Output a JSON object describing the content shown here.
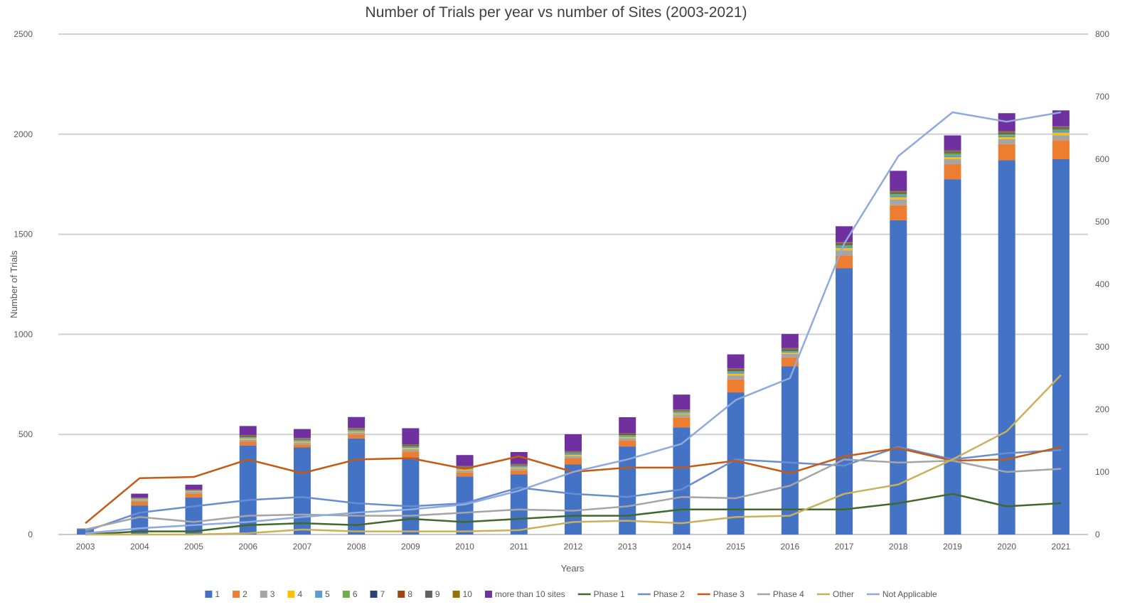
{
  "chart_data": {
    "type": "bar",
    "title": "Number of Trials per year vs number of Sites (2003-2021)",
    "xlabel": "Years",
    "ylabel": "Number of Trials",
    "ylim": [
      0,
      2500
    ],
    "y2lim": [
      0,
      800
    ],
    "yticks": [
      "0",
      "500",
      "1000",
      "1500",
      "2000",
      "2500"
    ],
    "y2ticks": [
      "0",
      "100",
      "200",
      "300",
      "400",
      "500",
      "600",
      "700",
      "800"
    ],
    "grid": true,
    "legend": "bottom",
    "categories": [
      "2003",
      "2004",
      "2005",
      "2006",
      "2007",
      "2008",
      "2009",
      "2010",
      "2011",
      "2012",
      "2013",
      "2014",
      "2015",
      "2016",
      "2017",
      "2018",
      "2019",
      "2020",
      "2021"
    ],
    "bar_series": [
      {
        "name": "1",
        "color": "#4472C4",
        "values": [
          28,
          145,
          185,
          445,
          435,
          480,
          385,
          290,
          300,
          350,
          440,
          535,
          710,
          840,
          1330,
          1570,
          1775,
          1870,
          1875
        ]
      },
      {
        "name": "2",
        "color": "#ED7D31",
        "values": [
          2,
          20,
          20,
          20,
          15,
          20,
          30,
          20,
          20,
          30,
          30,
          50,
          65,
          45,
          65,
          75,
          75,
          80,
          95
        ]
      },
      {
        "name": "3",
        "color": "#A5A5A5",
        "values": [
          1,
          8,
          8,
          10,
          10,
          10,
          12,
          10,
          10,
          12,
          12,
          15,
          20,
          18,
          25,
          30,
          25,
          25,
          25
        ]
      },
      {
        "name": "4",
        "color": "#FFC000",
        "values": [
          0,
          3,
          3,
          5,
          5,
          5,
          5,
          5,
          5,
          5,
          5,
          5,
          8,
          5,
          10,
          10,
          10,
          10,
          12
        ]
      },
      {
        "name": "5",
        "color": "#5B9BD5",
        "values": [
          0,
          2,
          2,
          5,
          5,
          5,
          5,
          5,
          5,
          5,
          5,
          5,
          8,
          5,
          8,
          10,
          10,
          8,
          10
        ]
      },
      {
        "name": "6",
        "color": "#70AD47",
        "values": [
          0,
          2,
          2,
          3,
          3,
          3,
          5,
          3,
          3,
          5,
          5,
          5,
          5,
          5,
          8,
          8,
          10,
          8,
          8
        ]
      },
      {
        "name": "7",
        "color": "#264478",
        "values": [
          0,
          1,
          1,
          2,
          2,
          2,
          2,
          2,
          2,
          2,
          2,
          2,
          3,
          3,
          3,
          3,
          3,
          3,
          3
        ]
      },
      {
        "name": "8",
        "color": "#9E480E",
        "values": [
          0,
          1,
          1,
          2,
          2,
          2,
          2,
          2,
          2,
          2,
          2,
          2,
          3,
          3,
          3,
          3,
          3,
          3,
          3
        ]
      },
      {
        "name": "9",
        "color": "#636363",
        "values": [
          0,
          1,
          1,
          3,
          3,
          3,
          3,
          3,
          3,
          3,
          3,
          3,
          5,
          5,
          5,
          5,
          5,
          5,
          5
        ]
      },
      {
        "name": "10",
        "color": "#997300",
        "values": [
          0,
          1,
          1,
          2,
          2,
          2,
          2,
          2,
          2,
          2,
          2,
          2,
          3,
          3,
          3,
          3,
          3,
          3,
          3
        ]
      },
      {
        "name": "more than 10 sites",
        "color": "#7030A0",
        "values": [
          0,
          20,
          25,
          45,
          45,
          55,
          80,
          55,
          60,
          85,
          80,
          75,
          70,
          70,
          80,
          100,
          75,
          90,
          80
        ]
      }
    ],
    "line_series": [
      {
        "name": "Phase 1",
        "color": "#43682B",
        "values": [
          0,
          5,
          5,
          15,
          18,
          15,
          25,
          20,
          25,
          30,
          30,
          40,
          40,
          40,
          40,
          50,
          65,
          45,
          50
        ]
      },
      {
        "name": "Phase 2",
        "color": "#698ED0",
        "values": [
          5,
          35,
          45,
          55,
          60,
          50,
          45,
          50,
          75,
          65,
          60,
          72,
          120,
          115,
          110,
          140,
          120,
          130,
          135
        ]
      },
      {
        "name": "Phase 3",
        "color": "#C55A11",
        "values": [
          18,
          90,
          92,
          120,
          98,
          120,
          122,
          105,
          125,
          100,
          107,
          107,
          118,
          98,
          125,
          138,
          118,
          120,
          140
        ]
      },
      {
        "name": "Phase 4",
        "color": "#A5A5A5",
        "values": [
          8,
          28,
          20,
          30,
          32,
          30,
          30,
          35,
          40,
          38,
          45,
          60,
          58,
          78,
          120,
          115,
          118,
          100,
          105
        ]
      },
      {
        "name": "Other",
        "color": "#C9B15C",
        "values": [
          0,
          0,
          0,
          2,
          8,
          5,
          5,
          5,
          7,
          20,
          22,
          18,
          28,
          30,
          65,
          80,
          120,
          165,
          255
        ]
      },
      {
        "name": "Not Applicable",
        "color": "#8FAADC",
        "values": [
          2,
          10,
          15,
          20,
          28,
          35,
          40,
          48,
          70,
          100,
          120,
          145,
          215,
          250,
          465,
          605,
          675,
          660,
          675
        ]
      }
    ]
  }
}
